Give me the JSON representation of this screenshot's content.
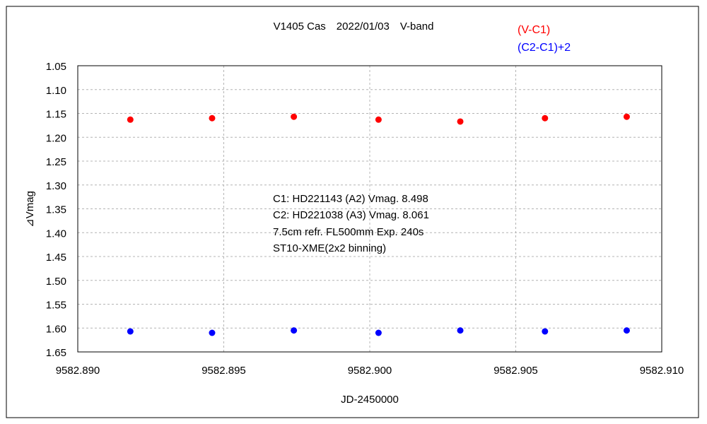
{
  "chart_data": {
    "type": "scatter",
    "title": "V1405 Cas　2022/01/03　V-band",
    "xlabel": "JD-2450000",
    "ylabel": "⊿Vmag",
    "xlim": [
      9582.89,
      9582.91
    ],
    "ylim": [
      1.05,
      1.65
    ],
    "y_inverted": true,
    "grid": true,
    "legend_placement": "top-right",
    "x_ticks": [
      "9582.890",
      "9582.895",
      "9582.900",
      "9582.905",
      "9582.910"
    ],
    "x_tick_values": [
      9582.89,
      9582.895,
      9582.9,
      9582.905,
      9582.91
    ],
    "y_ticks": [
      "1.05",
      "1.10",
      "1.15",
      "1.20",
      "1.25",
      "1.30",
      "1.35",
      "1.40",
      "1.45",
      "1.50",
      "1.55",
      "1.60",
      "1.65"
    ],
    "y_tick_values": [
      1.05,
      1.1,
      1.15,
      1.2,
      1.25,
      1.3,
      1.35,
      1.4,
      1.45,
      1.5,
      1.55,
      1.6,
      1.65
    ],
    "series": [
      {
        "name": "(V-C1)",
        "color": "#ff0000",
        "x": [
          9582.8918,
          9582.8946,
          9582.8974,
          9582.9003,
          9582.9031,
          9582.906,
          9582.9088
        ],
        "y": [
          1.163,
          1.16,
          1.157,
          1.163,
          1.167,
          1.16,
          1.157
        ]
      },
      {
        "name": "(C2-C1)+2",
        "color": "#0000ff",
        "x": [
          9582.8918,
          9582.8946,
          9582.8974,
          9582.9003,
          9582.9031,
          9582.906,
          9582.9088
        ],
        "y": [
          1.607,
          1.61,
          1.605,
          1.61,
          1.605,
          1.607,
          1.605
        ]
      }
    ],
    "annotations": [
      "C1: HD221143 (A2) Vmag. 8.498",
      "C2: HD221038 (A3) Vmag. 8.061",
      "7.5cm refr. FL500mm Exp. 240s",
      "ST10-XME(2x2 binning)"
    ]
  }
}
